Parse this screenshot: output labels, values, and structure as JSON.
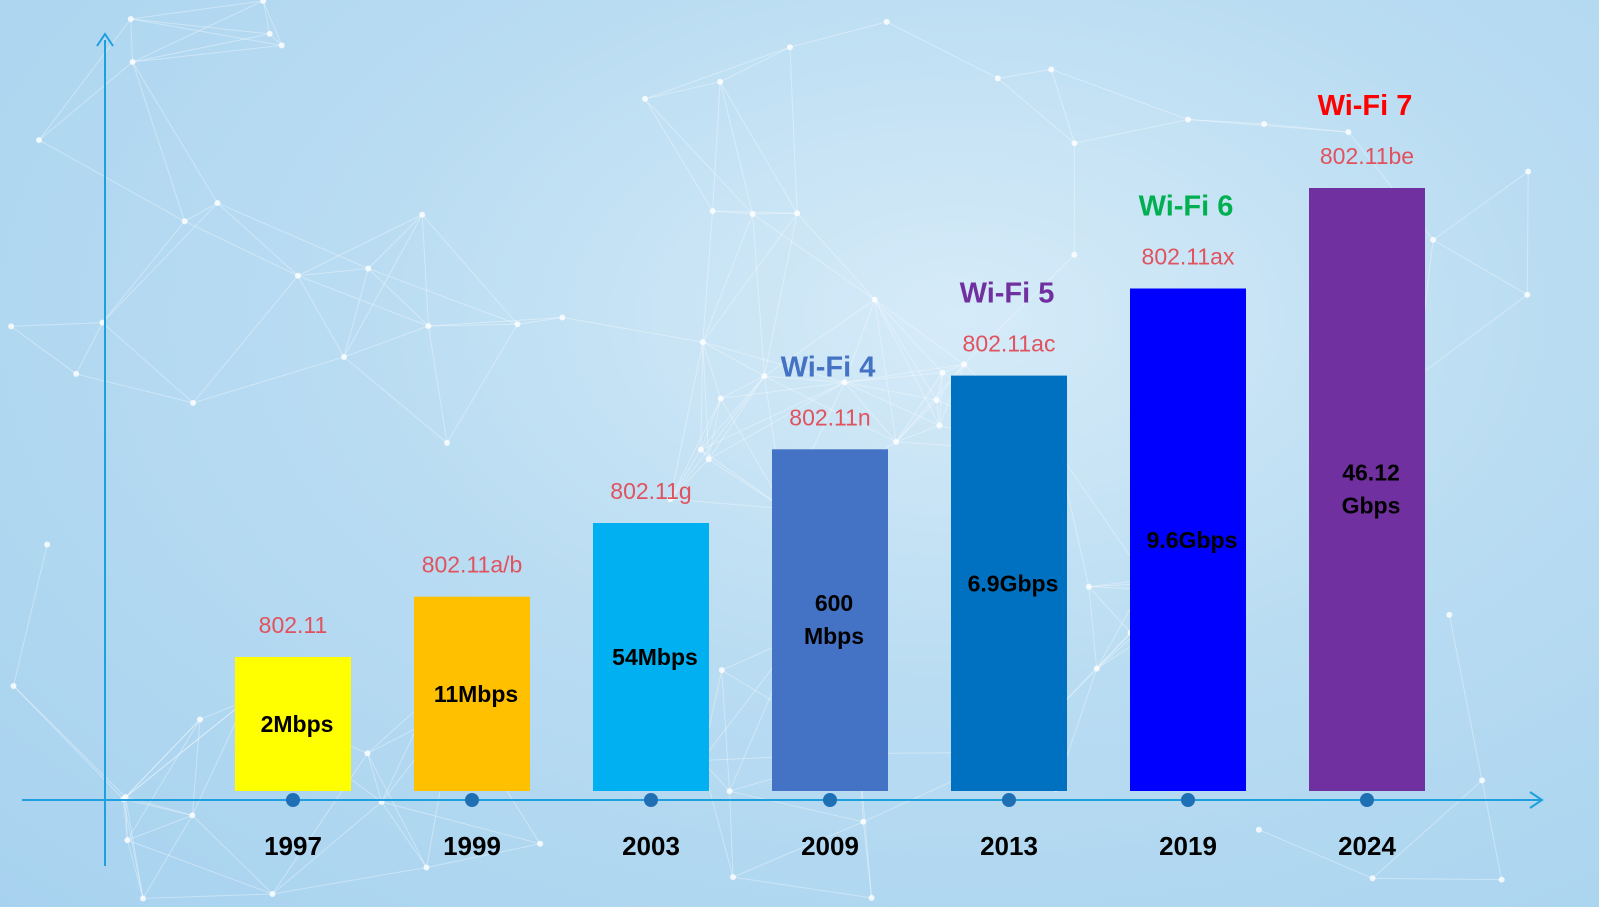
{
  "chart_data": {
    "type": "bar",
    "categories": [
      "1997",
      "1999",
      "2003",
      "2009",
      "2013",
      "2019",
      "2024"
    ],
    "standards": [
      "802.11",
      "802.11a/b",
      "802.11g",
      "802.11n",
      "802.11ac",
      "802.11ax",
      "802.11be"
    ],
    "generations": [
      "",
      "",
      "",
      "Wi-Fi 4",
      "Wi-Fi 5",
      "Wi-Fi 6",
      "Wi-Fi 7"
    ],
    "value_labels": [
      [
        "2Mbps"
      ],
      [
        "11Mbps"
      ],
      [
        "54Mbps"
      ],
      [
        "600",
        "Mbps"
      ],
      [
        "6.9Gbps"
      ],
      [
        "9.6Gbps"
      ],
      [
        "46.12",
        "Gbps"
      ]
    ],
    "bar_heights": [
      1,
      1.45,
      2.0,
      2.55,
      3.1,
      3.75,
      4.5
    ],
    "bar_colors": [
      "#ffff00",
      "#ffc000",
      "#00b0f0",
      "#4472c4",
      "#0070c0",
      "#0000ff",
      "#7030a0"
    ],
    "generation_colors": [
      "#4472c4",
      "#4472c4",
      "#4472c4",
      "#4472c4",
      "#7030a0",
      "#00b050",
      "#ff0000"
    ],
    "axis_color": "#1e9fe0",
    "dot_color": "#1f6fb4",
    "std_label_color": "#e0525e"
  }
}
